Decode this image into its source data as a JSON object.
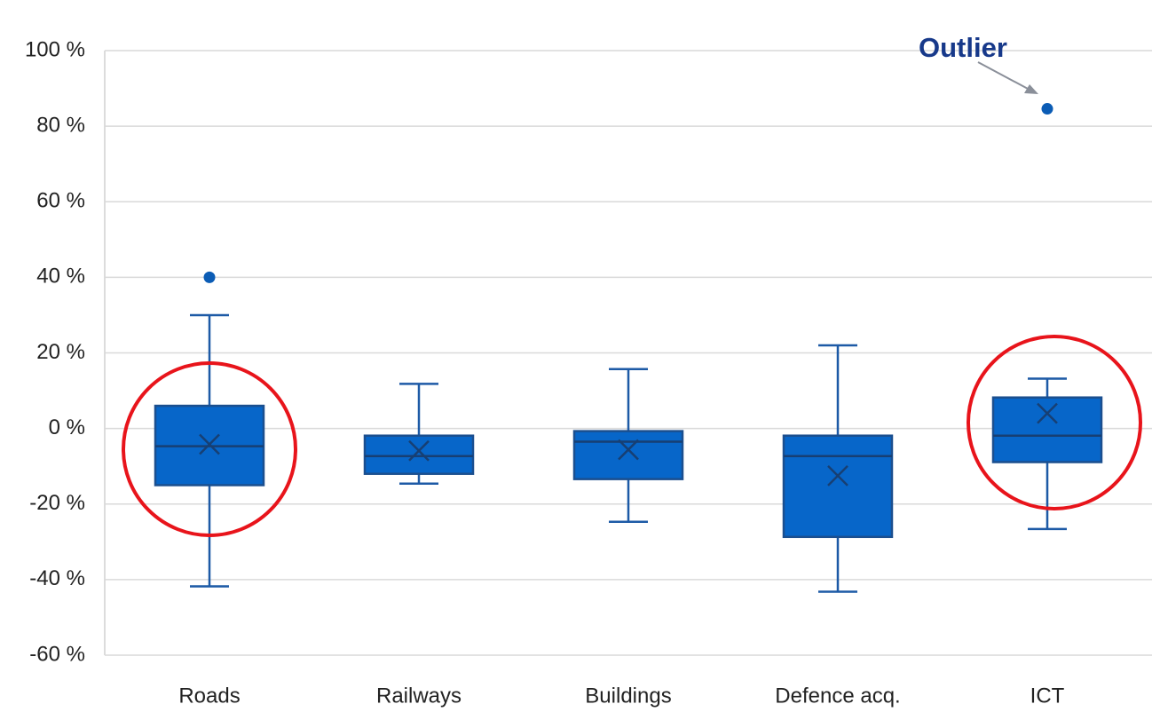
{
  "chart_data": {
    "type": "box",
    "categories": [
      "Roads",
      "Railways",
      "Buildings",
      "Defence acq.",
      "ICT"
    ],
    "boxes": [
      {
        "min": -41.8,
        "q1": -15,
        "median": -4.7,
        "q3": 6,
        "max": 30,
        "mean": -4.2,
        "outliers": [
          40
        ]
      },
      {
        "min": -14.6,
        "q1": -12,
        "median": -7.3,
        "q3": -1.9,
        "max": 11.8,
        "mean": -5.9,
        "outliers": []
      },
      {
        "min": -24.7,
        "q1": -13.4,
        "median": -3.5,
        "q3": -0.7,
        "max": 15.7,
        "mean": -5.6,
        "outliers": []
      },
      {
        "min": -43.2,
        "q1": -28.7,
        "median": -7.3,
        "q3": -1.9,
        "max": 22,
        "mean": -12.5,
        "outliers": []
      },
      {
        "min": -26.6,
        "q1": -8.9,
        "median": -1.9,
        "q3": 8.2,
        "max": 13.2,
        "mean": 4,
        "outliers": [
          84.6
        ]
      }
    ],
    "color": "#0766c9",
    "ylim": [
      -60,
      100
    ],
    "yticks": [
      {
        "value": -60,
        "label": "-60 %"
      },
      {
        "value": -40,
        "label": "-40 %"
      },
      {
        "value": -20,
        "label": "-20 %"
      },
      {
        "value": 0,
        "label": "0 %"
      },
      {
        "value": 20,
        "label": "20 %"
      },
      {
        "value": 40,
        "label": "40 %"
      },
      {
        "value": 60,
        "label": "60 %"
      },
      {
        "value": 80,
        "label": "80 %"
      },
      {
        "value": 100,
        "label": "100 %"
      }
    ],
    "grid": true,
    "annotation": "Outlier"
  }
}
